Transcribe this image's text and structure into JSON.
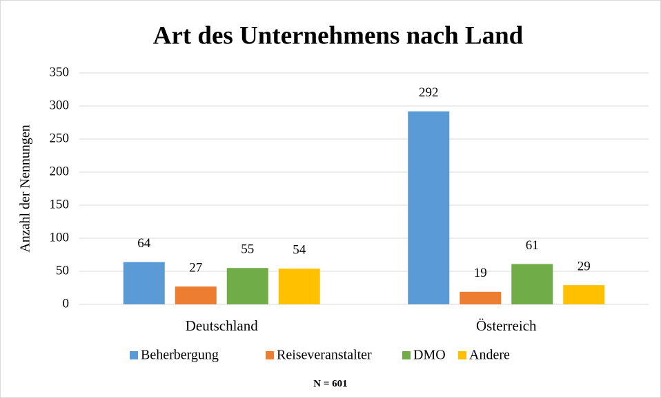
{
  "chart_data": {
    "type": "bar",
    "title": "Art des Unternehmens nach Land",
    "ylabel": "Anzahl der Nennungen",
    "annotation": "N = 601",
    "categories": [
      "Deutschland",
      "Österreich"
    ],
    "series": [
      {
        "name": "Beherbergung",
        "color": "#5b9bd5",
        "values": [
          64,
          292
        ]
      },
      {
        "name": "Reiseveranstalter",
        "color": "#ed7d31",
        "values": [
          27,
          19
        ]
      },
      {
        "name": "DMO",
        "color": "#70ad47",
        "values": [
          55,
          61
        ]
      },
      {
        "name": "Andere",
        "color": "#ffc000",
        "values": [
          54,
          29
        ]
      }
    ],
    "ylim": [
      0,
      350
    ],
    "yticks": [
      0,
      50,
      100,
      150,
      200,
      250,
      300,
      350
    ],
    "grid": true,
    "legend": "bottom"
  }
}
